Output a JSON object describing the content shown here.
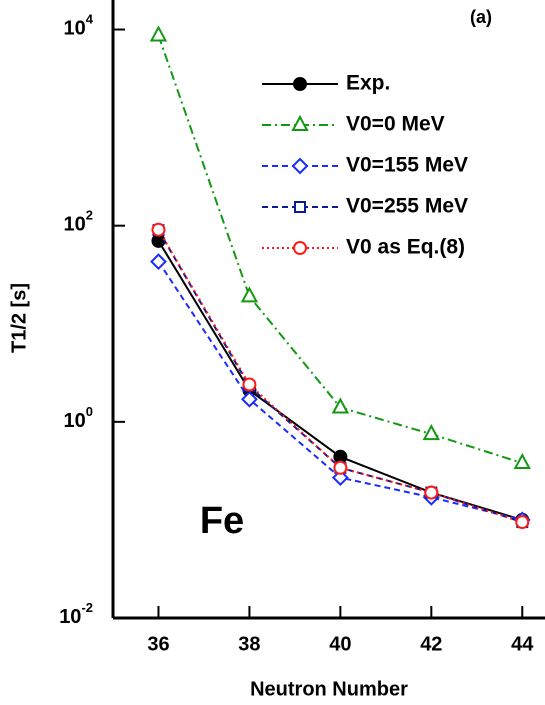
{
  "chart_data": {
    "type": "line",
    "log_y": true,
    "x_label": "Neutron Number",
    "y_label": "T1/2 [s]",
    "annotations": [
      "(a)",
      "Fe"
    ],
    "x": [
      36,
      38,
      40,
      42,
      44
    ],
    "xlim": [
      35,
      44.5
    ],
    "xticks": [
      36,
      38,
      40,
      42,
      44
    ],
    "ylim": [
      0.01,
      20000
    ],
    "yticks": [
      {
        "value": 0.01,
        "label": "10",
        "exponent": "-2"
      },
      {
        "value": 1,
        "label": "10",
        "exponent": "0"
      },
      {
        "value": 100,
        "label": "10",
        "exponent": "2"
      },
      {
        "value": 10000,
        "label": "10",
        "exponent": "4"
      }
    ],
    "series": [
      {
        "name": "Exp.",
        "color": "#000000",
        "marker": "circle-filled",
        "dash": "solid",
        "values": [
          70,
          2.1,
          0.44,
          0.19,
          0.1
        ]
      },
      {
        "name": "V0=0 MeV",
        "color": "#119911",
        "marker": "triangle",
        "dash": "dashdot",
        "values": [
          8700,
          19,
          1.4,
          0.75,
          0.38
        ]
      },
      {
        "name": "V0=155 MeV",
        "color": "#1a2cff",
        "marker": "diamond",
        "dash": "dashed",
        "values": [
          43,
          1.7,
          0.27,
          0.17,
          0.1
        ]
      },
      {
        "name": "V0=255 MeV",
        "color": "#0a1a99",
        "marker": "square",
        "dash": "dashed",
        "values": [
          90,
          2.3,
          0.34,
          0.19,
          0.095
        ]
      },
      {
        "name": "V0 as Eq.(8)",
        "color": "#ff1a1a",
        "marker": "circle",
        "dash": "dotted",
        "values": [
          91,
          2.4,
          0.34,
          0.19,
          0.095
        ]
      }
    ]
  }
}
